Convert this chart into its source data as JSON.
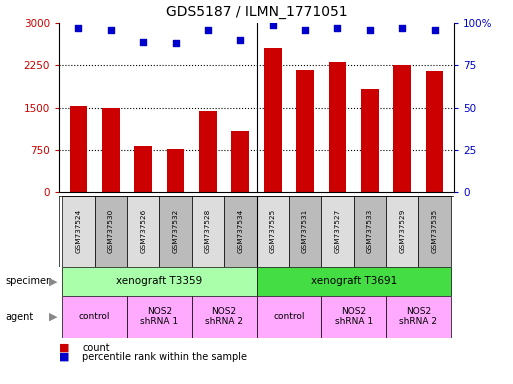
{
  "title": "GDS5187 / ILMN_1771051",
  "samples": [
    "GSM737524",
    "GSM737530",
    "GSM737526",
    "GSM737532",
    "GSM737528",
    "GSM737534",
    "GSM737525",
    "GSM737531",
    "GSM737527",
    "GSM737533",
    "GSM737529",
    "GSM737535"
  ],
  "counts": [
    1520,
    1490,
    820,
    760,
    1430,
    1080,
    2560,
    2170,
    2300,
    1830,
    2250,
    2150
  ],
  "percentile_ranks": [
    97,
    96,
    89,
    88,
    96,
    90,
    99,
    96,
    97,
    96,
    97,
    96
  ],
  "bar_color": "#cc0000",
  "dot_color": "#0000cc",
  "ylim_left": [
    0,
    3000
  ],
  "ylim_right": [
    0,
    100
  ],
  "yticks_left": [
    0,
    750,
    1500,
    2250,
    3000
  ],
  "ytick_labels_left": [
    "0",
    "750",
    "1500",
    "2250",
    "3000"
  ],
  "yticks_right": [
    0,
    25,
    50,
    75,
    100
  ],
  "ytick_labels_right": [
    "0",
    "25",
    "50",
    "75",
    "100%"
  ],
  "grid_lines": [
    750,
    1500,
    2250
  ],
  "specimen_labels": [
    "xenograft T3359",
    "xenograft T3691"
  ],
  "specimen_span_indices": [
    [
      0,
      5
    ],
    [
      6,
      11
    ]
  ],
  "specimen_color_light": "#aaffaa",
  "specimen_color_dark": "#44dd44",
  "agent_color": "#ffaaff",
  "agent_groups": [
    {
      "label": "control",
      "span": [
        0,
        1
      ]
    },
    {
      "label": "NOS2\nshRNA 1",
      "span": [
        2,
        3
      ]
    },
    {
      "label": "NOS2\nshRNA 2",
      "span": [
        4,
        5
      ]
    },
    {
      "label": "control",
      "span": [
        6,
        7
      ]
    },
    {
      "label": "NOS2\nshRNA 1",
      "span": [
        8,
        9
      ]
    },
    {
      "label": "NOS2\nshRNA 2",
      "span": [
        10,
        11
      ]
    }
  ],
  "left_label_color": "#cc0000",
  "right_label_color": "#0000cc",
  "background_color": "#ffffff",
  "bar_width": 0.55,
  "sample_box_color_even": "#dddddd",
  "sample_box_color_odd": "#bbbbbb"
}
